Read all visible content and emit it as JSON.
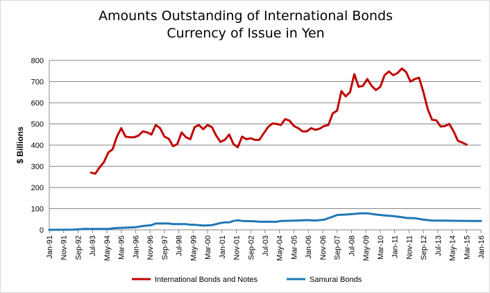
{
  "chart_data": {
    "type": "line",
    "title_line1": "Amounts Outstanding of International Bonds",
    "title_line2": "Currency of Issue in Yen",
    "ylabel": "$ Billions",
    "xlabel": "",
    "ylim": [
      0,
      800
    ],
    "yticks": [
      0,
      100,
      200,
      300,
      400,
      500,
      600,
      700,
      800
    ],
    "xrange": [
      "1991-01",
      "2016-01"
    ],
    "xticks": [
      "Jan-91",
      "Nov-91",
      "Sep-92",
      "Jul-93",
      "May-94",
      "Mar-95",
      "Jan-96",
      "Nov-96",
      "Sep-97",
      "Jul-98",
      "May-99",
      "Mar-00",
      "Jan-01",
      "Nov-01",
      "Sep-02",
      "Jul-03",
      "May-04",
      "Mar-05",
      "Jan-06",
      "Nov-06",
      "Sep-07",
      "Jul-08",
      "May-09",
      "Mar-10",
      "Jan-11",
      "Nov-11",
      "Sep-12",
      "Jul-13",
      "May-14",
      "Mar-15",
      "Jan-16"
    ],
    "grid": true,
    "legend_position": "bottom",
    "series": [
      {
        "name": "International Bonds and Notes",
        "color": "#c00000",
        "points": [
          [
            "1993-06",
            270
          ],
          [
            "1993-09",
            265
          ],
          [
            "1993-12",
            295
          ],
          [
            "1994-03",
            320
          ],
          [
            "1994-06",
            365
          ],
          [
            "1994-09",
            380
          ],
          [
            "1994-12",
            440
          ],
          [
            "1995-03",
            480
          ],
          [
            "1995-06",
            440
          ],
          [
            "1995-09",
            437
          ],
          [
            "1995-12",
            437
          ],
          [
            "1996-03",
            445
          ],
          [
            "1996-06",
            465
          ],
          [
            "1996-09",
            460
          ],
          [
            "1996-12",
            450
          ],
          [
            "1997-03",
            495
          ],
          [
            "1997-06",
            480
          ],
          [
            "1997-09",
            440
          ],
          [
            "1997-12",
            430
          ],
          [
            "1998-03",
            395
          ],
          [
            "1998-06",
            405
          ],
          [
            "1998-09",
            460
          ],
          [
            "1998-12",
            437
          ],
          [
            "1999-03",
            428
          ],
          [
            "1999-06",
            485
          ],
          [
            "1999-09",
            495
          ],
          [
            "1999-12",
            475
          ],
          [
            "2000-03",
            495
          ],
          [
            "2000-06",
            485
          ],
          [
            "2000-09",
            445
          ],
          [
            "2000-12",
            415
          ],
          [
            "2001-03",
            425
          ],
          [
            "2001-06",
            450
          ],
          [
            "2001-09",
            405
          ],
          [
            "2001-12",
            390
          ],
          [
            "2002-03",
            440
          ],
          [
            "2002-06",
            428
          ],
          [
            "2002-09",
            432
          ],
          [
            "2002-12",
            425
          ],
          [
            "2003-03",
            425
          ],
          [
            "2003-06",
            455
          ],
          [
            "2003-09",
            485
          ],
          [
            "2003-12",
            502
          ],
          [
            "2004-03",
            500
          ],
          [
            "2004-06",
            495
          ],
          [
            "2004-09",
            523
          ],
          [
            "2004-12",
            515
          ],
          [
            "2005-03",
            490
          ],
          [
            "2005-06",
            480
          ],
          [
            "2005-09",
            465
          ],
          [
            "2005-12",
            465
          ],
          [
            "2006-03",
            480
          ],
          [
            "2006-06",
            472
          ],
          [
            "2006-09",
            478
          ],
          [
            "2006-12",
            490
          ],
          [
            "2007-03",
            495
          ],
          [
            "2007-06",
            550
          ],
          [
            "2007-09",
            563
          ],
          [
            "2007-12",
            655
          ],
          [
            "2008-03",
            630
          ],
          [
            "2008-06",
            650
          ],
          [
            "2008-09",
            735
          ],
          [
            "2008-12",
            675
          ],
          [
            "2009-03",
            680
          ],
          [
            "2009-06",
            712
          ],
          [
            "2009-09",
            680
          ],
          [
            "2009-12",
            660
          ],
          [
            "2010-03",
            675
          ],
          [
            "2010-06",
            730
          ],
          [
            "2010-09",
            748
          ],
          [
            "2010-12",
            730
          ],
          [
            "2011-03",
            740
          ],
          [
            "2011-06",
            762
          ],
          [
            "2011-09",
            745
          ],
          [
            "2011-12",
            700
          ],
          [
            "2012-03",
            712
          ],
          [
            "2012-06",
            718
          ],
          [
            "2012-09",
            650
          ],
          [
            "2012-12",
            570
          ],
          [
            "2013-03",
            520
          ],
          [
            "2013-06",
            517
          ],
          [
            "2013-09",
            488
          ],
          [
            "2013-12",
            490
          ],
          [
            "2014-03",
            500
          ],
          [
            "2014-06",
            465
          ],
          [
            "2014-09",
            420
          ],
          [
            "2014-12",
            412
          ],
          [
            "2015-03",
            402
          ]
        ]
      },
      {
        "name": "Samurai Bonds",
        "color": "#1f77b4",
        "points": [
          [
            "1991-01",
            0
          ],
          [
            "1992-06",
            1
          ],
          [
            "1993-01",
            4
          ],
          [
            "1994-06",
            4
          ],
          [
            "1994-10",
            8
          ],
          [
            "1995-06",
            10
          ],
          [
            "1996-01",
            12
          ],
          [
            "1996-06",
            18
          ],
          [
            "1996-12",
            22
          ],
          [
            "1997-03",
            30
          ],
          [
            "1997-12",
            30
          ],
          [
            "1998-03",
            27
          ],
          [
            "1998-12",
            27
          ],
          [
            "1999-03",
            24
          ],
          [
            "1999-06",
            24
          ],
          [
            "1999-12",
            20
          ],
          [
            "2000-06",
            22
          ],
          [
            "2000-12",
            32
          ],
          [
            "2001-03",
            35
          ],
          [
            "2001-06",
            35
          ],
          [
            "2001-09",
            42
          ],
          [
            "2001-12",
            45
          ],
          [
            "2002-03",
            42
          ],
          [
            "2002-12",
            40
          ],
          [
            "2003-03",
            38
          ],
          [
            "2004-03",
            38
          ],
          [
            "2004-06",
            42
          ],
          [
            "2005-06",
            44
          ],
          [
            "2005-12",
            46
          ],
          [
            "2006-06",
            44
          ],
          [
            "2006-12",
            48
          ],
          [
            "2007-06",
            62
          ],
          [
            "2007-09",
            70
          ],
          [
            "2008-03",
            72
          ],
          [
            "2008-09",
            75
          ],
          [
            "2009-01",
            78
          ],
          [
            "2009-06",
            78
          ],
          [
            "2009-12",
            72
          ],
          [
            "2010-06",
            68
          ],
          [
            "2010-12",
            65
          ],
          [
            "2011-06",
            60
          ],
          [
            "2011-09",
            56
          ],
          [
            "2012-03",
            55
          ],
          [
            "2012-09",
            48
          ],
          [
            "2013-03",
            44
          ],
          [
            "2014-03",
            43
          ],
          [
            "2015-06",
            42
          ],
          [
            "2016-01",
            42
          ]
        ]
      }
    ]
  }
}
